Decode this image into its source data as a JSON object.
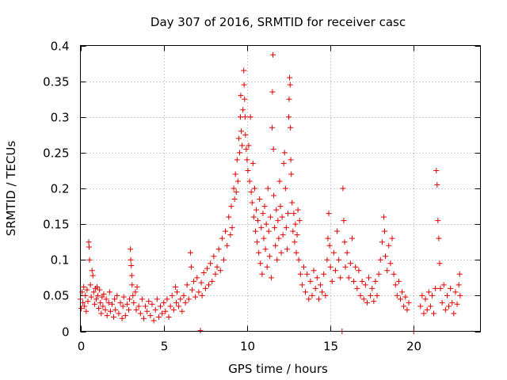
{
  "chart_data": {
    "type": "scatter",
    "title": "Day 307 of 2016, SRMTID for receiver casc",
    "xlabel": "GPS time / hours",
    "ylabel": "SRMTID / TECUs",
    "xlim": [
      0,
      24
    ],
    "ylim": [
      0,
      0.4
    ],
    "x_ticks": [
      0,
      5,
      10,
      15,
      20
    ],
    "x_tick_labels": [
      "0",
      "5",
      "10",
      "15",
      "20"
    ],
    "y_ticks": [
      0,
      0.05,
      0.1,
      0.15,
      0.2,
      0.25,
      0.3,
      0.35,
      0.4
    ],
    "y_tick_labels": [
      "0",
      "0.05",
      "0.1",
      "0.15",
      "0.2",
      "0.25",
      "0.3",
      "0.35",
      "0.4"
    ],
    "grid": true,
    "marker": "plus",
    "series": [
      {
        "name": "SRMTID",
        "color": "#e00000",
        "points": [
          [
            0.0,
            0.045
          ],
          [
            0.05,
            0.032
          ],
          [
            0.1,
            0.055
          ],
          [
            0.15,
            0.04
          ],
          [
            0.2,
            0.062
          ],
          [
            0.25,
            0.035
          ],
          [
            0.3,
            0.05
          ],
          [
            0.35,
            0.028
          ],
          [
            0.4,
            0.058
          ],
          [
            0.45,
            0.042
          ],
          [
            0.5,
            0.125
          ],
          [
            0.52,
            0.118
          ],
          [
            0.55,
            0.1
          ],
          [
            0.6,
            0.065
          ],
          [
            0.65,
            0.048
          ],
          [
            0.7,
            0.085
          ],
          [
            0.75,
            0.078
          ],
          [
            0.8,
            0.055
          ],
          [
            0.85,
            0.038
          ],
          [
            0.9,
            0.06
          ],
          [
            0.95,
            0.045
          ],
          [
            1.0,
            0.062
          ],
          [
            1.05,
            0.05
          ],
          [
            1.1,
            0.032
          ],
          [
            1.15,
            0.058
          ],
          [
            1.2,
            0.04
          ],
          [
            1.25,
            0.025
          ],
          [
            1.3,
            0.048
          ],
          [
            1.35,
            0.035
          ],
          [
            1.4,
            0.052
          ],
          [
            1.5,
            0.03
          ],
          [
            1.55,
            0.045
          ],
          [
            1.6,
            0.022
          ],
          [
            1.7,
            0.04
          ],
          [
            1.75,
            0.055
          ],
          [
            1.8,
            0.028
          ],
          [
            1.9,
            0.038
          ],
          [
            2.0,
            0.02
          ],
          [
            2.05,
            0.045
          ],
          [
            2.1,
            0.03
          ],
          [
            2.2,
            0.05
          ],
          [
            2.3,
            0.025
          ],
          [
            2.4,
            0.04
          ],
          [
            2.5,
            0.018
          ],
          [
            2.55,
            0.035
          ],
          [
            2.6,
            0.048
          ],
          [
            2.7,
            0.022
          ],
          [
            2.8,
            0.038
          ],
          [
            2.9,
            0.03
          ],
          [
            2.95,
            0.045
          ],
          [
            3.0,
            0.115
          ],
          [
            3.02,
            0.1
          ],
          [
            3.05,
            0.092
          ],
          [
            3.08,
            0.078
          ],
          [
            3.1,
            0.065
          ],
          [
            3.15,
            0.05
          ],
          [
            3.2,
            0.04
          ],
          [
            3.3,
            0.055
          ],
          [
            3.35,
            0.03
          ],
          [
            3.4,
            0.062
          ],
          [
            3.5,
            0.035
          ],
          [
            3.6,
            0.025
          ],
          [
            3.7,
            0.045
          ],
          [
            3.8,
            0.018
          ],
          [
            3.9,
            0.035
          ],
          [
            4.0,
            0.028
          ],
          [
            4.1,
            0.042
          ],
          [
            4.2,
            0.022
          ],
          [
            4.3,
            0.038
          ],
          [
            4.4,
            0.015
          ],
          [
            4.5,
            0.03
          ],
          [
            4.6,
            0.045
          ],
          [
            4.7,
            0.02
          ],
          [
            4.8,
            0.035
          ],
          [
            4.9,
            0.025
          ],
          [
            5.0,
            0.04
          ],
          [
            5.1,
            0.028
          ],
          [
            5.2,
            0.045
          ],
          [
            5.3,
            0.02
          ],
          [
            5.4,
            0.035
          ],
          [
            5.5,
            0.05
          ],
          [
            5.6,
            0.03
          ],
          [
            5.7,
            0.062
          ],
          [
            5.75,
            0.04
          ],
          [
            5.8,
            0.055
          ],
          [
            5.9,
            0.035
          ],
          [
            6.0,
            0.045
          ],
          [
            6.1,
            0.028
          ],
          [
            6.2,
            0.05
          ],
          [
            6.3,
            0.04
          ],
          [
            6.4,
            0.065
          ],
          [
            6.5,
            0.045
          ],
          [
            6.6,
            0.11
          ],
          [
            6.65,
            0.09
          ],
          [
            6.7,
            0.058
          ],
          [
            6.8,
            0.07
          ],
          [
            6.9,
            0.048
          ],
          [
            7.0,
            0.075
          ],
          [
            7.1,
            0.055
          ],
          [
            7.2,
            0.001
          ],
          [
            7.25,
            0.068
          ],
          [
            7.3,
            0.05
          ],
          [
            7.4,
            0.082
          ],
          [
            7.5,
            0.06
          ],
          [
            7.6,
            0.088
          ],
          [
            7.7,
            0.065
          ],
          [
            7.8,
            0.095
          ],
          [
            7.9,
            0.07
          ],
          [
            8.0,
            0.105
          ],
          [
            8.1,
            0.08
          ],
          [
            8.2,
            0.09
          ],
          [
            8.3,
            0.115
          ],
          [
            8.4,
            0.085
          ],
          [
            8.5,
            0.13
          ],
          [
            8.6,
            0.1
          ],
          [
            8.7,
            0.14
          ],
          [
            8.8,
            0.12
          ],
          [
            8.9,
            0.16
          ],
          [
            9.0,
            0.135
          ],
          [
            9.05,
            0.175
          ],
          [
            9.1,
            0.145
          ],
          [
            9.2,
            0.2
          ],
          [
            9.25,
            0.185
          ],
          [
            9.3,
            0.22
          ],
          [
            9.35,
            0.195
          ],
          [
            9.4,
            0.24
          ],
          [
            9.45,
            0.21
          ],
          [
            9.5,
            0.27
          ],
          [
            9.55,
            0.25
          ],
          [
            9.6,
            0.3
          ],
          [
            9.62,
            0.33
          ],
          [
            9.65,
            0.28
          ],
          [
            9.7,
            0.26
          ],
          [
            9.75,
            0.31
          ],
          [
            9.8,
            0.365
          ],
          [
            9.82,
            0.345
          ],
          [
            9.85,
            0.325
          ],
          [
            9.88,
            0.3
          ],
          [
            9.9,
            0.275
          ],
          [
            9.95,
            0.255
          ],
          [
            10.0,
            0.24
          ],
          [
            10.05,
            0.225
          ],
          [
            10.1,
            0.26
          ],
          [
            10.15,
            0.21
          ],
          [
            10.2,
            0.3
          ],
          [
            10.25,
            0.195
          ],
          [
            10.3,
            0.18
          ],
          [
            10.35,
            0.235
          ],
          [
            10.4,
            0.16
          ],
          [
            10.45,
            0.2
          ],
          [
            10.5,
            0.14
          ],
          [
            10.55,
            0.17
          ],
          [
            10.6,
            0.125
          ],
          [
            10.65,
            0.155
          ],
          [
            10.7,
            0.11
          ],
          [
            10.75,
            0.185
          ],
          [
            10.8,
            0.095
          ],
          [
            10.85,
            0.145
          ],
          [
            10.9,
            0.08
          ],
          [
            10.95,
            0.165
          ],
          [
            11.0,
            0.13
          ],
          [
            11.05,
            0.175
          ],
          [
            11.1,
            0.115
          ],
          [
            11.15,
            0.15
          ],
          [
            11.2,
            0.09
          ],
          [
            11.25,
            0.2
          ],
          [
            11.3,
            0.14
          ],
          [
            11.35,
            0.105
          ],
          [
            11.4,
            0.16
          ],
          [
            11.45,
            0.075
          ],
          [
            11.5,
            0.285
          ],
          [
            11.52,
            0.335
          ],
          [
            11.55,
            0.387
          ],
          [
            11.58,
            0.255
          ],
          [
            11.6,
            0.19
          ],
          [
            11.65,
            0.145
          ],
          [
            11.7,
            0.12
          ],
          [
            11.75,
            0.17
          ],
          [
            11.8,
            0.1
          ],
          [
            11.85,
            0.155
          ],
          [
            11.9,
            0.13
          ],
          [
            11.95,
            0.21
          ],
          [
            12.0,
            0.175
          ],
          [
            12.05,
            0.11
          ],
          [
            12.1,
            0.16
          ],
          [
            12.15,
            0.135
          ],
          [
            12.2,
            0.235
          ],
          [
            12.25,
            0.25
          ],
          [
            12.3,
            0.2
          ],
          [
            12.35,
            0.145
          ],
          [
            12.4,
            0.115
          ],
          [
            12.45,
            0.165
          ],
          [
            12.5,
            0.3
          ],
          [
            12.52,
            0.325
          ],
          [
            12.55,
            0.355
          ],
          [
            12.58,
            0.345
          ],
          [
            12.6,
            0.285
          ],
          [
            12.62,
            0.24
          ],
          [
            12.65,
            0.22
          ],
          [
            12.7,
            0.18
          ],
          [
            12.75,
            0.14
          ],
          [
            12.8,
            0.165
          ],
          [
            12.85,
            0.125
          ],
          [
            12.9,
            0.15
          ],
          [
            12.95,
            0.11
          ],
          [
            13.0,
            0.135
          ],
          [
            13.05,
            0.17
          ],
          [
            13.1,
            0.1
          ],
          [
            13.15,
            0.155
          ],
          [
            13.2,
            0.08
          ],
          [
            13.3,
            0.065
          ],
          [
            13.4,
            0.09
          ],
          [
            13.5,
            0.055
          ],
          [
            13.6,
            0.08
          ],
          [
            13.7,
            0.045
          ],
          [
            13.8,
            0.07
          ],
          [
            13.9,
            0.05
          ],
          [
            14.0,
            0.085
          ],
          [
            14.1,
            0.06
          ],
          [
            14.2,
            0.075
          ],
          [
            14.3,
            0.045
          ],
          [
            14.4,
            0.065
          ],
          [
            14.5,
            0.055
          ],
          [
            14.6,
            0.08
          ],
          [
            14.7,
            0.05
          ],
          [
            14.8,
            0.1
          ],
          [
            14.85,
            0.13
          ],
          [
            14.9,
            0.165
          ],
          [
            14.95,
            0.12
          ],
          [
            15.0,
            0.09
          ],
          [
            15.1,
            0.07
          ],
          [
            15.2,
            0.11
          ],
          [
            15.3,
            0.085
          ],
          [
            15.4,
            0.14
          ],
          [
            15.5,
            0.1
          ],
          [
            15.6,
            0.075
          ],
          [
            15.7,
            0.0
          ],
          [
            15.75,
            0.2
          ],
          [
            15.8,
            0.155
          ],
          [
            15.85,
            0.125
          ],
          [
            15.9,
            0.09
          ],
          [
            16.0,
            0.11
          ],
          [
            16.1,
            0.075
          ],
          [
            16.2,
            0.095
          ],
          [
            16.3,
            0.13
          ],
          [
            16.4,
            0.07
          ],
          [
            16.5,
            0.09
          ],
          [
            16.6,
            0.06
          ],
          [
            16.7,
            0.085
          ],
          [
            16.8,
            0.05
          ],
          [
            16.9,
            0.07
          ],
          [
            17.0,
            0.045
          ],
          [
            17.1,
            0.065
          ],
          [
            17.2,
            0.04
          ],
          [
            17.3,
            0.075
          ],
          [
            17.4,
            0.05
          ],
          [
            17.5,
            0.06
          ],
          [
            17.6,
            0.042
          ],
          [
            17.7,
            0.07
          ],
          [
            17.8,
            0.05
          ],
          [
            17.9,
            0.08
          ],
          [
            18.0,
            0.1
          ],
          [
            18.1,
            0.125
          ],
          [
            18.2,
            0.16
          ],
          [
            18.25,
            0.14
          ],
          [
            18.3,
            0.105
          ],
          [
            18.4,
            0.085
          ],
          [
            18.5,
            0.12
          ],
          [
            18.6,
            0.095
          ],
          [
            18.7,
            0.13
          ],
          [
            18.8,
            0.08
          ],
          [
            18.9,
            0.065
          ],
          [
            19.0,
            0.05
          ],
          [
            19.1,
            0.07
          ],
          [
            19.2,
            0.045
          ],
          [
            19.3,
            0.055
          ],
          [
            19.4,
            0.035
          ],
          [
            19.5,
            0.048
          ],
          [
            19.6,
            0.03
          ],
          [
            19.7,
            0.04
          ],
          [
            20.0,
            0.0
          ],
          [
            20.4,
            0.035
          ],
          [
            20.5,
            0.05
          ],
          [
            20.6,
            0.025
          ],
          [
            20.7,
            0.045
          ],
          [
            20.8,
            0.03
          ],
          [
            20.9,
            0.055
          ],
          [
            21.0,
            0.035
          ],
          [
            21.1,
            0.05
          ],
          [
            21.2,
            0.025
          ],
          [
            21.3,
            0.06
          ],
          [
            21.35,
            0.225
          ],
          [
            21.4,
            0.205
          ],
          [
            21.45,
            0.155
          ],
          [
            21.5,
            0.13
          ],
          [
            21.55,
            0.095
          ],
          [
            21.6,
            0.06
          ],
          [
            21.7,
            0.04
          ],
          [
            21.8,
            0.065
          ],
          [
            21.9,
            0.03
          ],
          [
            22.0,
            0.05
          ],
          [
            22.1,
            0.035
          ],
          [
            22.2,
            0.06
          ],
          [
            22.3,
            0.04
          ],
          [
            22.4,
            0.025
          ],
          [
            22.5,
            0.055
          ],
          [
            22.6,
            0.038
          ],
          [
            22.7,
            0.065
          ],
          [
            22.75,
            0.08
          ],
          [
            22.78,
            0.05
          ]
        ]
      }
    ]
  }
}
